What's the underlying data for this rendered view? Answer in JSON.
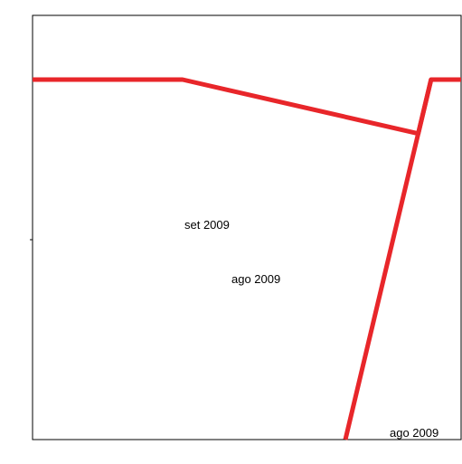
{
  "chart_data": {
    "type": "line",
    "title": "",
    "xlabel": "",
    "ylabel": "",
    "grid": false,
    "legend": "none",
    "series": [
      {
        "color": "#e8262a",
        "points": [
          [
            0,
            0.8
          ],
          [
            0.35,
            0.8
          ],
          [
            0.9,
            0.68
          ],
          [
            0.93,
            0.8
          ],
          [
            1.0,
            0.8
          ]
        ]
      },
      {
        "color": "#e8262a",
        "points": [
          [
            0.93,
            0.8
          ],
          [
            0.73,
            0.0
          ]
        ]
      }
    ],
    "annotations": [
      {
        "text": "set 2009"
      },
      {
        "text": "ago 2009"
      },
      {
        "text": "ago 2009"
      }
    ]
  }
}
